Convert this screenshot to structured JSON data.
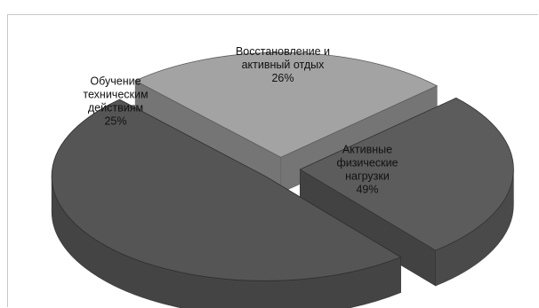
{
  "chart_data": {
    "type": "pie",
    "style": "3d-exploded",
    "title": "",
    "slices": [
      {
        "label": [
          "Восстановление и",
          "активный отдых"
        ],
        "percent_label": "26%",
        "value": 26,
        "color": "#5c5c5c"
      },
      {
        "label": [
          "Активные",
          "физические",
          "нагрузки"
        ],
        "percent_label": "49%",
        "value": 49,
        "color": "#555555"
      },
      {
        "label": [
          "Обучение",
          "техническим",
          "действиям"
        ],
        "percent_label": "25%",
        "value": 25,
        "color": "#a3a3a3"
      }
    ],
    "legend": "none"
  }
}
